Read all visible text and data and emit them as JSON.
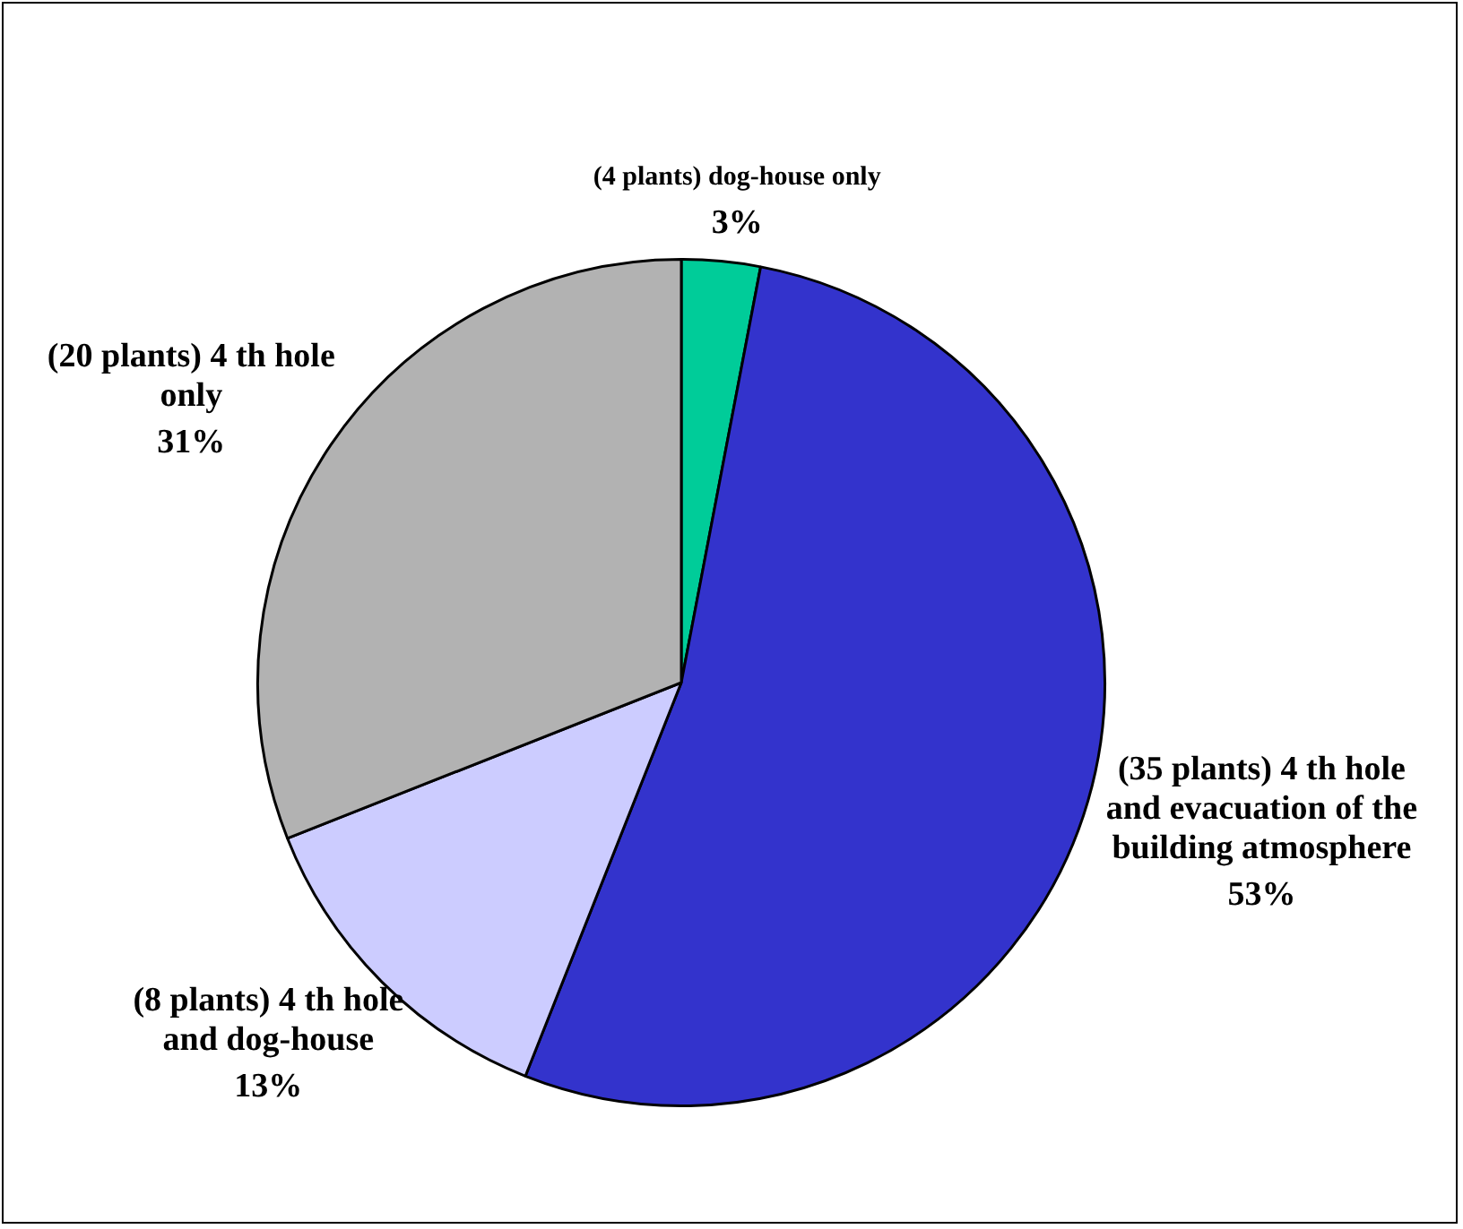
{
  "chart_data": {
    "type": "pie",
    "categories": [
      "(4 plants) dog-house only",
      "(35 plants) 4 th hole and evacuation of the building atmosphere",
      "(8 plants) 4 th hole and dog-house",
      "(20 plants) 4 th hole only"
    ],
    "values": [
      3,
      53,
      13,
      31
    ],
    "value_labels": [
      "3%",
      "53%",
      "13%",
      "31%"
    ],
    "colors": [
      "#00cc99",
      "#3333cc",
      "#ccccff",
      "#b2b2b2"
    ],
    "legend": false
  }
}
